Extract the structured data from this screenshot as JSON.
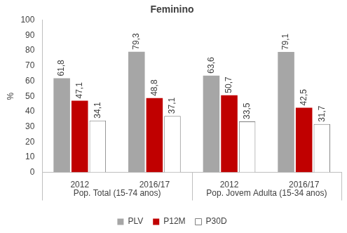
{
  "chart_data": {
    "type": "bar",
    "title": "Feminino",
    "y_label": "%",
    "categories": [
      "2012",
      "2016/17",
      "2012",
      "2016/17"
    ],
    "groups": [
      {
        "label": "Pop. Total (15-74 anos)",
        "count": 2
      },
      {
        "label": "Pop. Jovem Adulta (15-34 anos)",
        "count": 2
      }
    ],
    "series": [
      {
        "name": "PLV",
        "color": "#a6a6a6",
        "values": [
          61.8,
          79.3,
          63.6,
          79.1
        ],
        "value_labels": [
          "61,8",
          "79,3",
          "63,6",
          "79,1"
        ]
      },
      {
        "name": "P12M",
        "color": "#c00000",
        "values": [
          47.1,
          48.8,
          50.7,
          42.5
        ],
        "value_labels": [
          "47,1",
          "48,8",
          "50,7",
          "42,5"
        ]
      },
      {
        "name": "P30D",
        "color": "#ffffff",
        "values": [
          34.1,
          37.1,
          33.5,
          31.7
        ],
        "value_labels": [
          "34,1",
          "37,1",
          "33,5",
          "31,7"
        ]
      }
    ],
    "ylim": [
      0,
      100
    ],
    "yticks": [
      0,
      10,
      20,
      30,
      40,
      50,
      60,
      70,
      80,
      90,
      100
    ],
    "grid": false,
    "legend": "bottom",
    "data_labels": true
  }
}
